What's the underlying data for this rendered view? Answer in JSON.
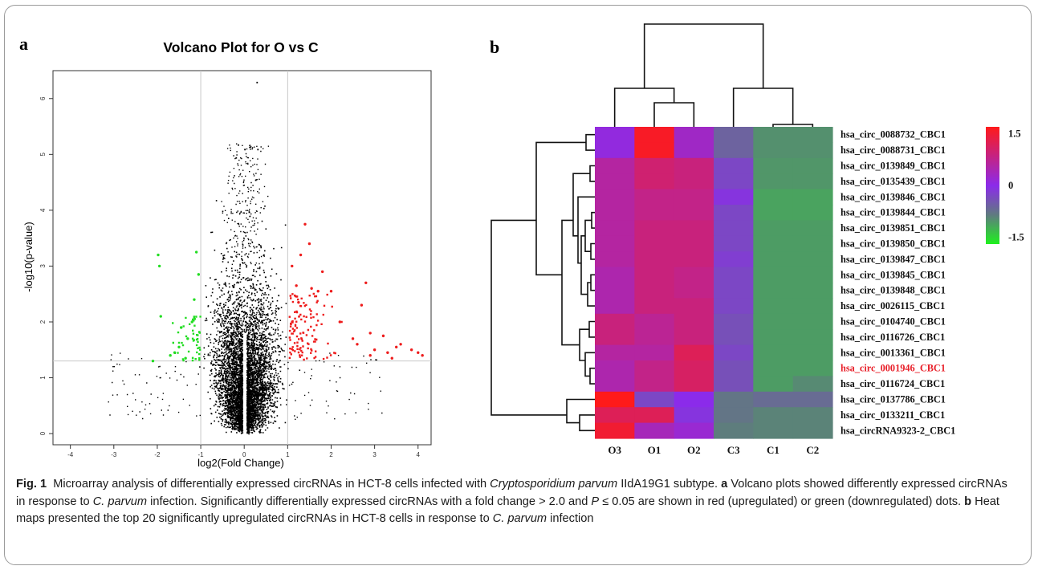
{
  "caption": {
    "fig_label": "Fig. 1",
    "s1": "Microarray analysis of differentially expressed circRNAs in HCT-8 cells infected with ",
    "s1_italic": "Cryptosporidium parvum",
    "s2": " IIdA19G1 subtype. ",
    "b_a": "a",
    "s3": " Volcano plots showed differently expressed circRNAs in response to ",
    "s3_italic": "C. parvum",
    "s4": " infection. Significantly differentially expressed circRNAs with a fold change > 2.0 and ",
    "s4_italic": "P",
    "s5": " ≤ 0.05 are shown in red (upregulated) or green (downregulated) dots. ",
    "b_b": "b",
    "s6": " Heat maps presented the top 20 significantly upregulated circRNAs in HCT-8 cells in response to ",
    "s6_italic": "C. parvum",
    "s7": " infection"
  },
  "colors": {
    "up": "#ee1c1c",
    "down": "#22dd22",
    "ns": "#000000",
    "heat_high": "#ff1a1a",
    "heat_mid": "#8b2bea",
    "heat_low": "#1ff01f",
    "highlight_label": "#e8202a"
  },
  "chart_data": [
    {
      "type": "scatter",
      "panel_label": "a",
      "title": "Volcano Plot for O vs C",
      "xlabel": "log2(Fold Change)",
      "ylabel": "-log10(p-value)",
      "xlim": [
        -4.4,
        4.3
      ],
      "ylim": [
        -0.2,
        6.5
      ],
      "x_ticks": [
        -4,
        -3,
        -2,
        -1,
        0,
        1,
        2,
        3,
        4
      ],
      "y_ticks": [
        0,
        1,
        2,
        3,
        4,
        5,
        6
      ],
      "threshold_lines": {
        "x": [
          -1,
          1
        ],
        "y": 1.3
      },
      "series": [
        {
          "role": "upregulated",
          "points": [
            [
              1.4,
              3.75
            ],
            [
              2.8,
              2.7
            ],
            [
              2.0,
              2.55
            ],
            [
              1.2,
              2.65
            ],
            [
              1.7,
              2.55
            ],
            [
              1.55,
              2.6
            ],
            [
              2.7,
              2.3
            ],
            [
              2.2,
              2.0
            ],
            [
              2.5,
              1.7
            ],
            [
              2.9,
              1.8
            ],
            [
              3.2,
              1.75
            ],
            [
              3.5,
              1.55
            ],
            [
              3.6,
              1.6
            ],
            [
              3.85,
              1.5
            ],
            [
              4.1,
              1.4
            ],
            [
              4.0,
              1.45
            ],
            [
              3.3,
              1.45
            ],
            [
              3.0,
              1.5
            ],
            [
              3.4,
              1.35
            ],
            [
              2.9,
              1.4
            ],
            [
              2.6,
              1.6
            ],
            [
              1.8,
              2.9
            ],
            [
              1.3,
              3.2
            ],
            [
              1.5,
              3.4
            ],
            [
              1.1,
              3.0
            ],
            [
              1.25,
              2.35
            ]
          ]
        },
        {
          "role": "downregulated",
          "points": [
            [
              -1.98,
              3.2
            ],
            [
              -1.95,
              3.0
            ],
            [
              -1.1,
              3.25
            ],
            [
              -1.05,
              2.85
            ],
            [
              -1.92,
              2.1
            ],
            [
              -2.1,
              1.3
            ],
            [
              -1.7,
              1.4
            ],
            [
              -1.5,
              1.55
            ],
            [
              -1.3,
              1.7
            ],
            [
              -1.45,
              1.9
            ],
            [
              -1.2,
              2.0
            ],
            [
              -1.6,
              1.45
            ],
            [
              -1.15,
              2.4
            ],
            [
              -1.35,
              1.35
            ]
          ]
        }
      ]
    },
    {
      "type": "heatmap",
      "panel_label": "b",
      "columns": [
        "O3",
        "O1",
        "O2",
        "C3",
        "C1",
        "C2"
      ],
      "rows": [
        "hsa_circ_0088732_CBC1",
        "hsa_circ_0088731_CBC1",
        "hsa_circ_0139849_CBC1",
        "hsa_circ_0135439_CBC1",
        "hsa_circ_0139846_CBC1",
        "hsa_circ_0139844_CBC1",
        "hsa_circ_0139851_CBC1",
        "hsa_circ_0139850_CBC1",
        "hsa_circ_0139847_CBC1",
        "hsa_circ_0139845_CBC1",
        "hsa_circ_0139848_CBC1",
        "hsa_circ_0026115_CBC1",
        "hsa_circ_0104740_CBC1",
        "hsa_circ_0116726_CBC1",
        "hsa_circ_0013361_CBC1",
        "hsa_circ_0001946_CBC1",
        "hsa_circ_0116724_CBC1",
        "hsa_circ_0137786_CBC1",
        "hsa_circ_0133211_CBC1",
        "hsa_circRNA9323-2_CBC1"
      ],
      "highlighted_row": "hsa_circ_0001946_CBC1",
      "values": [
        [
          0.1,
          1.6,
          0.3,
          -0.6,
          -1.2,
          -1.2
        ],
        [
          0.1,
          1.6,
          0.3,
          -0.6,
          -1.2,
          -1.2
        ],
        [
          0.6,
          1.0,
          0.9,
          -0.3,
          -1.3,
          -1.3
        ],
        [
          0.6,
          1.0,
          0.9,
          -0.3,
          -1.3,
          -1.3
        ],
        [
          0.6,
          0.8,
          0.8,
          -0.1,
          -1.5,
          -1.5
        ],
        [
          0.6,
          0.8,
          0.8,
          -0.3,
          -1.5,
          -1.5
        ],
        [
          0.6,
          0.9,
          0.9,
          -0.3,
          -1.4,
          -1.4
        ],
        [
          0.6,
          0.9,
          0.9,
          -0.3,
          -1.4,
          -1.4
        ],
        [
          0.6,
          0.9,
          0.9,
          -0.2,
          -1.4,
          -1.4
        ],
        [
          0.5,
          0.9,
          0.8,
          -0.3,
          -1.4,
          -1.4
        ],
        [
          0.5,
          0.9,
          0.8,
          -0.3,
          -1.4,
          -1.4
        ],
        [
          0.5,
          0.9,
          0.9,
          -0.3,
          -1.4,
          -1.4
        ],
        [
          0.9,
          0.7,
          0.9,
          -0.4,
          -1.4,
          -1.4
        ],
        [
          0.9,
          0.7,
          0.9,
          -0.4,
          -1.4,
          -1.4
        ],
        [
          0.6,
          0.6,
          1.2,
          -0.3,
          -1.4,
          -1.4
        ],
        [
          0.5,
          0.8,
          1.1,
          -0.4,
          -1.4,
          -1.4
        ],
        [
          0.5,
          0.8,
          1.1,
          -0.4,
          -1.4,
          -1.1
        ],
        [
          1.7,
          -0.3,
          0.0,
          -0.8,
          -0.7,
          -0.7
        ],
        [
          1.2,
          1.2,
          -0.1,
          -0.8,
          -1.0,
          -1.0
        ],
        [
          1.5,
          0.4,
          0.2,
          -0.9,
          -1.0,
          -1.0
        ]
      ],
      "color_scale": {
        "min": -1.7,
        "max": 1.7,
        "ticks": [
          1.5,
          0,
          -1.5
        ],
        "tick_labels": [
          "1.5",
          "0",
          "-1.5"
        ]
      }
    }
  ]
}
